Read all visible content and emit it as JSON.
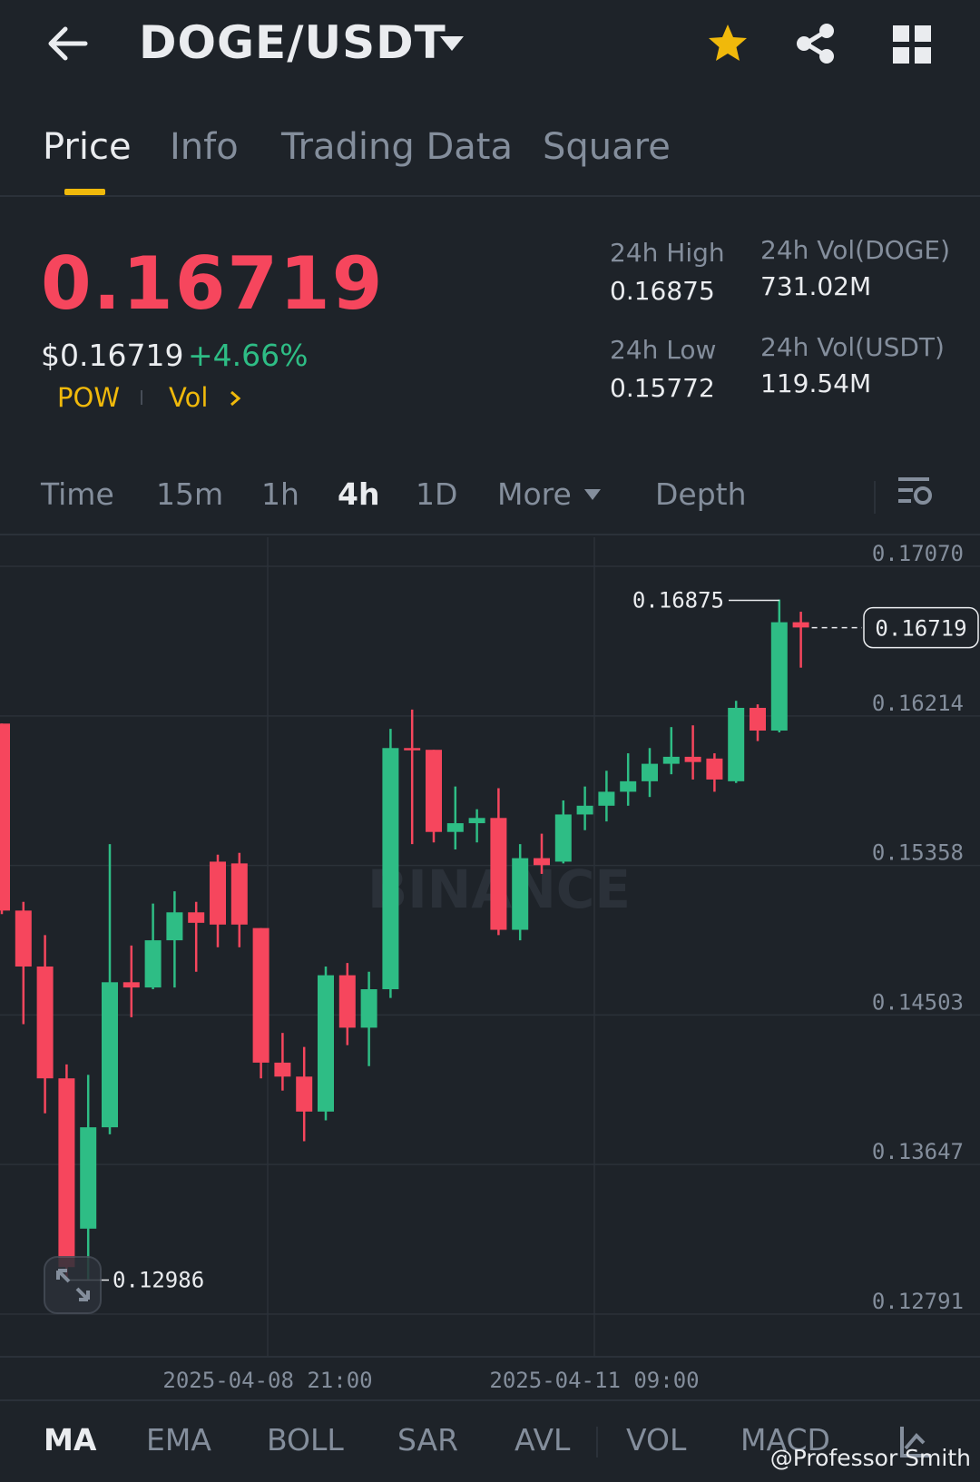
{
  "header": {
    "pair": "DOGE/USDT",
    "back_icon": "arrow-left-icon",
    "dropdown_icon": "caret-down-icon",
    "favorite_icon": "star-icon",
    "share_icon": "share-icon",
    "menu_icon": "grid-icon",
    "favorite_color": "#f0b90b"
  },
  "tabs": [
    {
      "label": "Price",
      "active": true
    },
    {
      "label": "Info",
      "active": false
    },
    {
      "label": "Trading Data",
      "active": false
    },
    {
      "label": "Square",
      "active": false
    }
  ],
  "ticker": {
    "last_price": "0.16719",
    "usd_price": "$0.16719",
    "change": "+4.66%",
    "tag1": "POW",
    "tag2": "Vol",
    "high_label": "24h High",
    "high_value": "0.16875",
    "low_label": "24h Low",
    "low_value": "0.15772",
    "vol_doge_label": "24h Vol(DOGE)",
    "vol_doge_value": "731.02M",
    "vol_usdt_label": "24h Vol(USDT)",
    "vol_usdt_value": "119.54M",
    "down_color": "#f6465d",
    "up_color": "#2ebd85"
  },
  "timeframes": {
    "items": [
      "Time",
      "15m",
      "1h",
      "4h",
      "1D"
    ],
    "active": "4h",
    "more": "More",
    "depth": "Depth",
    "settings_icon": "chart-settings-icon"
  },
  "indicators": {
    "items": [
      "MA",
      "EMA",
      "BOLL",
      "SAR",
      "AVL",
      "VOL",
      "MACD"
    ],
    "active": "MA",
    "edit_icon": "indicator-edit-icon"
  },
  "watermark": "@Professor Smith",
  "chart_data": {
    "type": "candlestick",
    "y_ticks": [
      "0.17070",
      "0.16214",
      "0.15358",
      "0.14503",
      "0.13647",
      "0.12791"
    ],
    "y_tick_values": [
      0.1707,
      0.16214,
      0.15358,
      0.14503,
      0.13647,
      0.12791
    ],
    "x_ticks": [
      "2025-04-08 21:00",
      "2025-04-11 09:00"
    ],
    "high_marker": "0.16875",
    "low_marker": "0.12986",
    "last_marker": "0.16719",
    "chart_watermark": "BINANCE",
    "expand_icon": "expand-icon",
    "candles": [
      {
        "o": 0.1617,
        "h": 0.1617,
        "l": 0.1508,
        "c": 0.151
      },
      {
        "o": 0.151,
        "h": 0.1515,
        "l": 0.1445,
        "c": 0.1478
      },
      {
        "o": 0.1478,
        "h": 0.1496,
        "l": 0.1394,
        "c": 0.1414
      },
      {
        "o": 0.1414,
        "h": 0.1422,
        "l": 0.1299,
        "c": 0.1306
      },
      {
        "o": 0.1328,
        "h": 0.1416,
        "l": 0.1299,
        "c": 0.1386
      },
      {
        "o": 0.1386,
        "h": 0.1548,
        "l": 0.1382,
        "c": 0.1469
      },
      {
        "o": 0.1469,
        "h": 0.149,
        "l": 0.1449,
        "c": 0.1466
      },
      {
        "o": 0.1466,
        "h": 0.1514,
        "l": 0.1465,
        "c": 0.1493
      },
      {
        "o": 0.1493,
        "h": 0.1521,
        "l": 0.1466,
        "c": 0.1509
      },
      {
        "o": 0.1509,
        "h": 0.1515,
        "l": 0.1475,
        "c": 0.1503
      },
      {
        "o": 0.1538,
        "h": 0.1542,
        "l": 0.1489,
        "c": 0.1502
      },
      {
        "o": 0.1537,
        "h": 0.1543,
        "l": 0.1489,
        "c": 0.1502
      },
      {
        "o": 0.15,
        "h": 0.15,
        "l": 0.1414,
        "c": 0.1423
      },
      {
        "o": 0.1423,
        "h": 0.144,
        "l": 0.1407,
        "c": 0.1415
      },
      {
        "o": 0.1415,
        "h": 0.1432,
        "l": 0.1378,
        "c": 0.1395
      },
      {
        "o": 0.1395,
        "h": 0.1478,
        "l": 0.139,
        "c": 0.1473
      },
      {
        "o": 0.1473,
        "h": 0.148,
        "l": 0.1433,
        "c": 0.1443
      },
      {
        "o": 0.1443,
        "h": 0.1475,
        "l": 0.1421,
        "c": 0.1465
      },
      {
        "o": 0.1465,
        "h": 0.1614,
        "l": 0.146,
        "c": 0.1603
      },
      {
        "o": 0.1603,
        "h": 0.1625,
        "l": 0.1548,
        "c": 0.1602
      },
      {
        "o": 0.1602,
        "h": 0.1602,
        "l": 0.1549,
        "c": 0.1555
      },
      {
        "o": 0.1555,
        "h": 0.1581,
        "l": 0.1545,
        "c": 0.156
      },
      {
        "o": 0.156,
        "h": 0.1568,
        "l": 0.1549,
        "c": 0.1563
      },
      {
        "o": 0.1563,
        "h": 0.158,
        "l": 0.1496,
        "c": 0.1499
      },
      {
        "o": 0.1499,
        "h": 0.1548,
        "l": 0.1493,
        "c": 0.154
      },
      {
        "o": 0.154,
        "h": 0.1554,
        "l": 0.1531,
        "c": 0.1536
      },
      {
        "o": 0.1538,
        "h": 0.1573,
        "l": 0.1537,
        "c": 0.1565
      },
      {
        "o": 0.1565,
        "h": 0.1581,
        "l": 0.1556,
        "c": 0.157
      },
      {
        "o": 0.157,
        "h": 0.159,
        "l": 0.1561,
        "c": 0.1578
      },
      {
        "o": 0.1578,
        "h": 0.16,
        "l": 0.157,
        "c": 0.1584
      },
      {
        "o": 0.1584,
        "h": 0.1603,
        "l": 0.1575,
        "c": 0.1594
      },
      {
        "o": 0.1594,
        "h": 0.1615,
        "l": 0.1588,
        "c": 0.1598
      },
      {
        "o": 0.1598,
        "h": 0.1616,
        "l": 0.1585,
        "c": 0.1595
      },
      {
        "o": 0.1597,
        "h": 0.16,
        "l": 0.1578,
        "c": 0.1585
      },
      {
        "o": 0.1584,
        "h": 0.163,
        "l": 0.1583,
        "c": 0.1626
      },
      {
        "o": 0.1626,
        "h": 0.1628,
        "l": 0.1607,
        "c": 0.1613
      },
      {
        "o": 0.1613,
        "h": 0.1688,
        "l": 0.1612,
        "c": 0.1675
      },
      {
        "o": 0.1675,
        "h": 0.1681,
        "l": 0.1649,
        "c": 0.1672
      }
    ]
  }
}
